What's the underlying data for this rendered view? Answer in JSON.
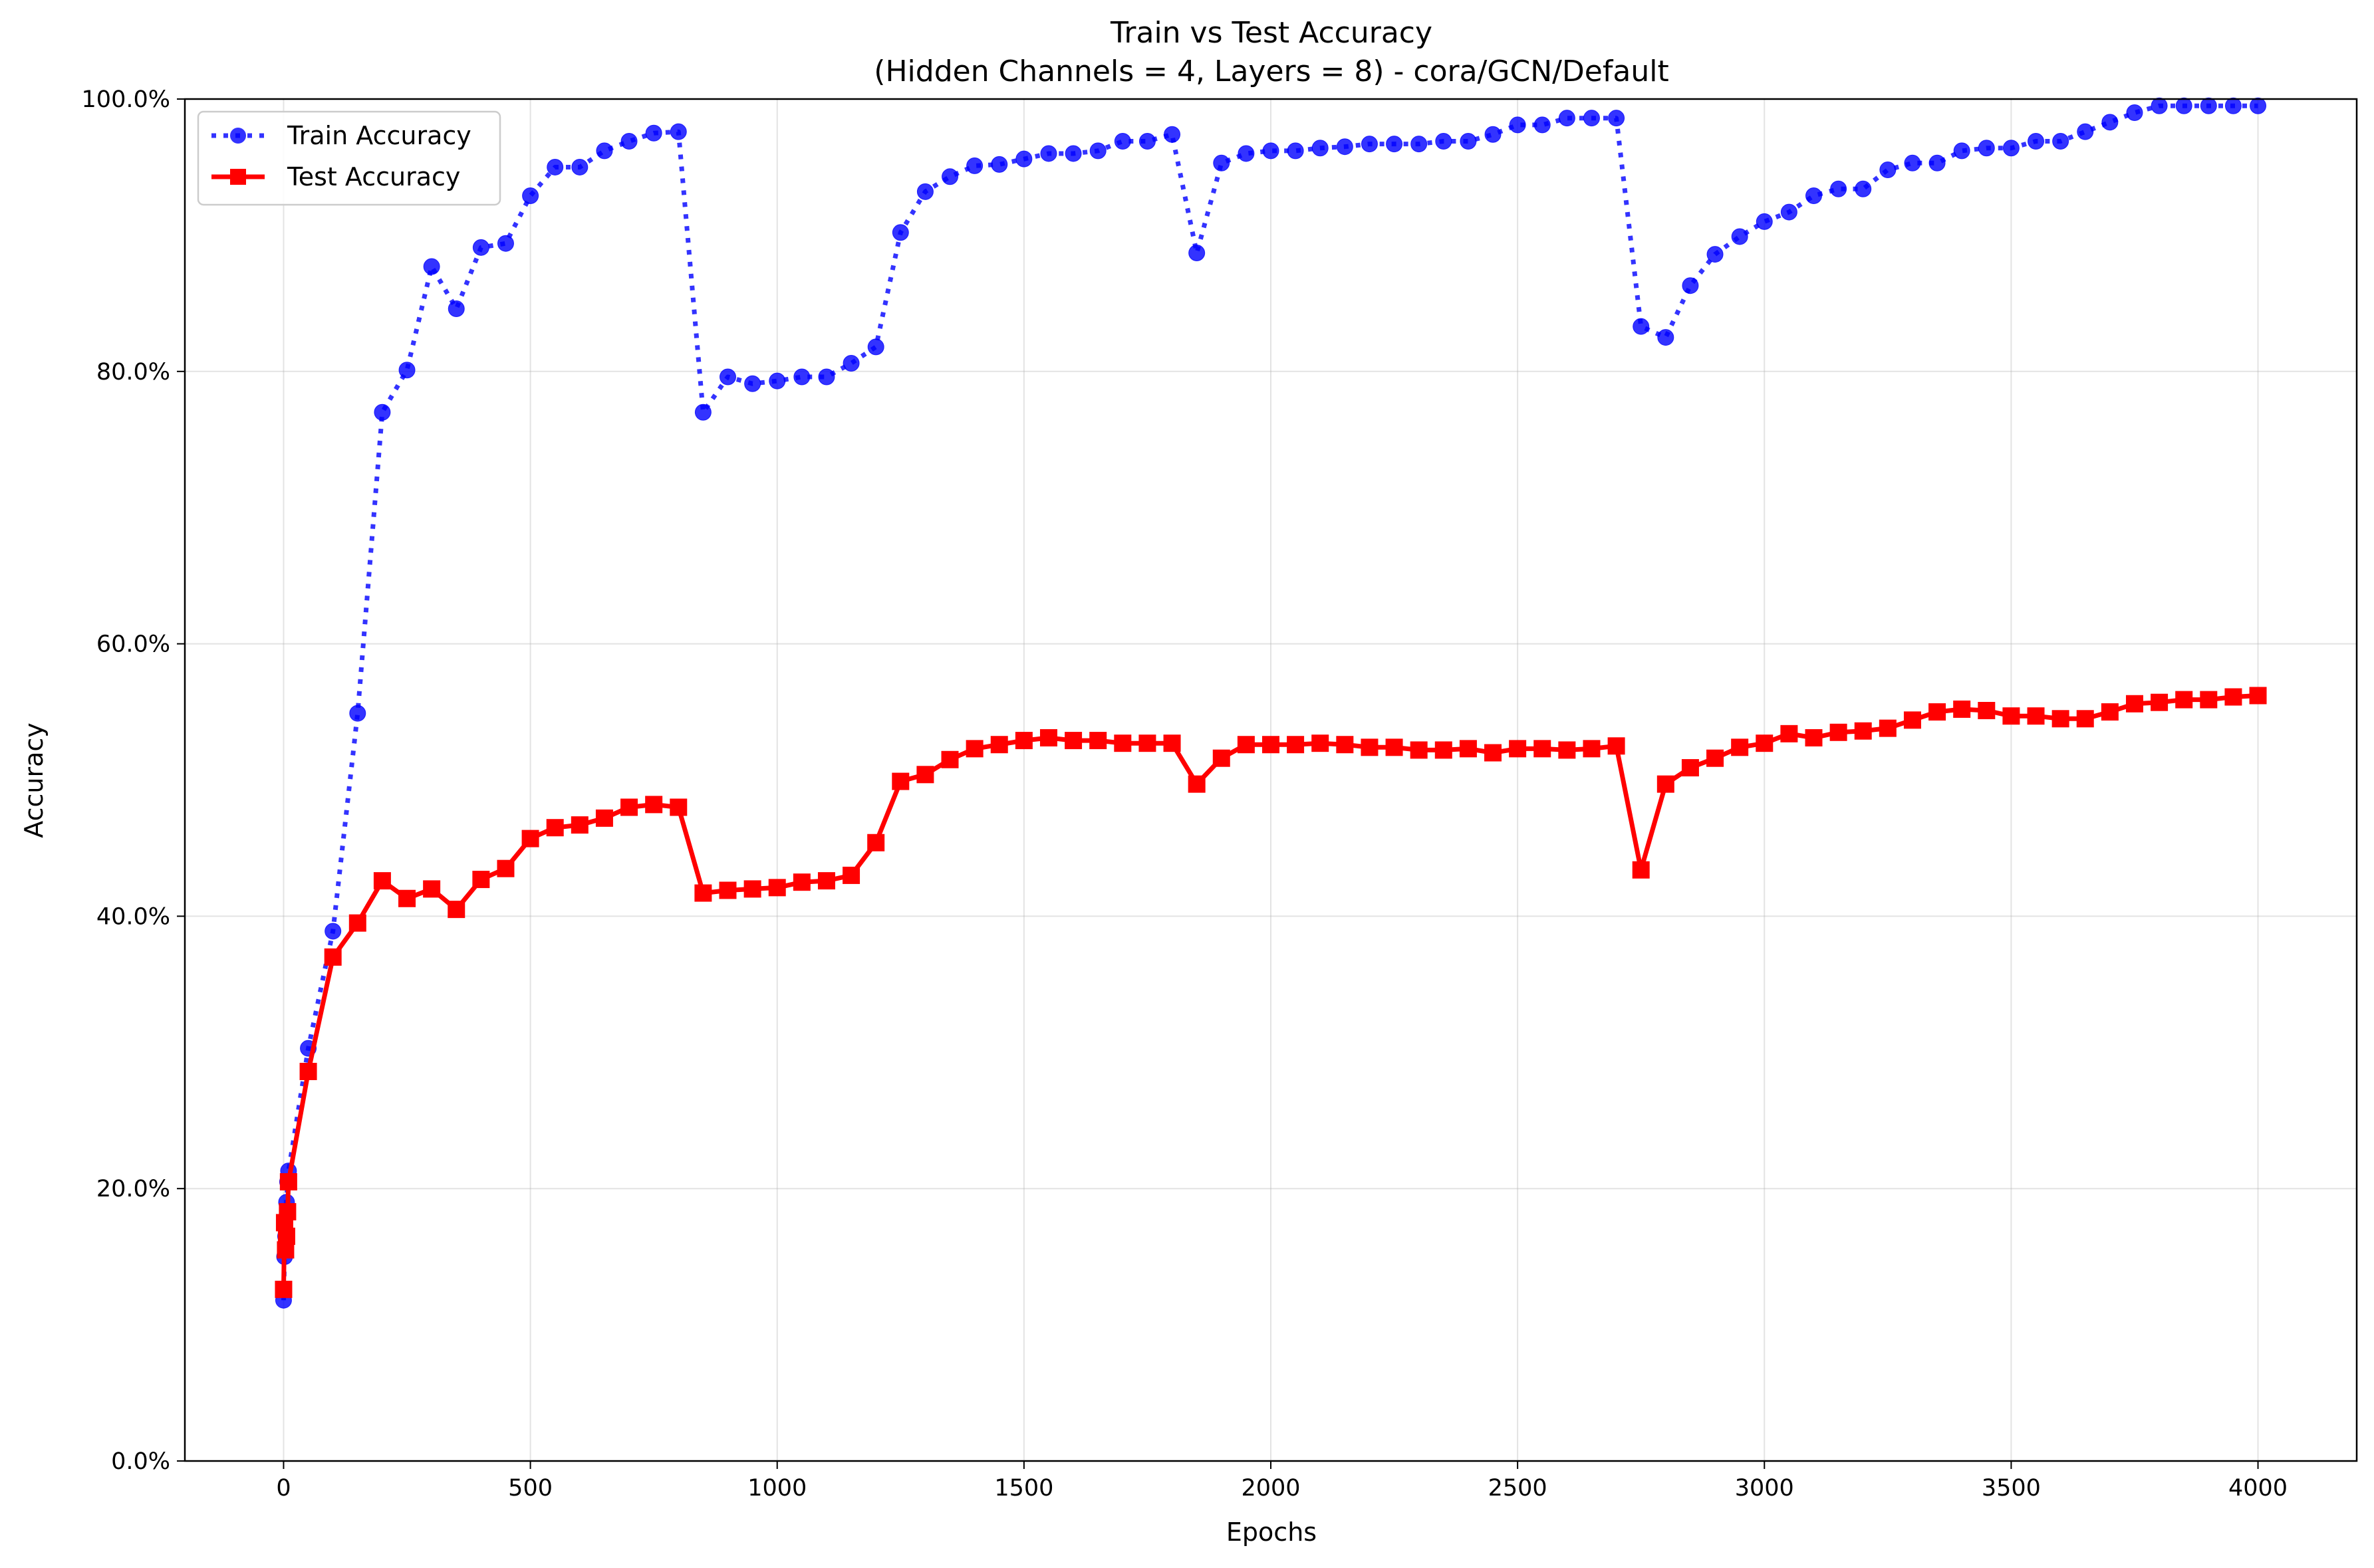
{
  "chart_data": {
    "type": "line",
    "title": "Train vs Test Accuracy",
    "subtitle": "(Hidden Channels = 4, Layers = 8) - cora/GCN/Default",
    "xlabel": "Epochs",
    "ylabel": "Accuracy",
    "xlim": [
      -200,
      4200
    ],
    "ylim": [
      0,
      100
    ],
    "x_ticks": [
      0,
      500,
      1000,
      1500,
      2000,
      2500,
      3000,
      3500,
      4000
    ],
    "x_tick_labels": [
      "0",
      "500",
      "1000",
      "1500",
      "2000",
      "2500",
      "3000",
      "3500",
      "4000"
    ],
    "y_ticks": [
      0,
      20,
      40,
      60,
      80,
      100
    ],
    "y_tick_labels": [
      "0.0%",
      "20.0%",
      "40.0%",
      "60.0%",
      "80.0%",
      "100.0%"
    ],
    "grid": true,
    "legend_position": "top-left",
    "x": [
      0,
      2,
      4,
      6,
      8,
      10,
      50,
      100,
      150,
      200,
      250,
      300,
      350,
      400,
      450,
      500,
      550,
      600,
      650,
      700,
      750,
      800,
      850,
      900,
      950,
      1000,
      1050,
      1100,
      1150,
      1200,
      1250,
      1300,
      1350,
      1400,
      1450,
      1500,
      1550,
      1600,
      1650,
      1700,
      1750,
      1800,
      1850,
      1900,
      1950,
      2000,
      2050,
      2100,
      2150,
      2200,
      2250,
      2300,
      2350,
      2400,
      2450,
      2500,
      2550,
      2600,
      2650,
      2700,
      2750,
      2800,
      2850,
      2900,
      2950,
      3000,
      3050,
      3100,
      3150,
      3200,
      3250,
      3300,
      3350,
      3400,
      3450,
      3500,
      3550,
      3600,
      3650,
      3700,
      3750,
      3800,
      3850,
      3900,
      3950,
      4000
    ],
    "series": [
      {
        "name": "Train Accuracy",
        "color": "#0000ff",
        "line_style": "dotted",
        "marker": "circle",
        "values": [
          11.8,
          15.0,
          16.5,
          19.0,
          20.5,
          21.3,
          30.3,
          38.9,
          54.9,
          77.0,
          80.1,
          87.7,
          84.6,
          89.1,
          89.4,
          92.9,
          95.0,
          95.0,
          96.2,
          96.9,
          97.5,
          97.6,
          77.0,
          79.6,
          79.1,
          79.3,
          79.6,
          79.6,
          80.6,
          81.8,
          90.2,
          93.2,
          94.3,
          95.1,
          95.2,
          95.6,
          96.0,
          96.0,
          96.2,
          96.9,
          96.9,
          97.4,
          88.7,
          95.3,
          96.0,
          96.2,
          96.2,
          96.4,
          96.5,
          96.7,
          96.7,
          96.7,
          96.9,
          96.9,
          97.4,
          98.1,
          98.1,
          98.6,
          98.6,
          98.6,
          83.3,
          82.5,
          86.3,
          88.6,
          89.9,
          91.0,
          91.7,
          92.9,
          93.4,
          93.4,
          94.8,
          95.3,
          95.3,
          96.2,
          96.4,
          96.4,
          96.9,
          96.9,
          97.6,
          98.3,
          99.0,
          99.5,
          99.5,
          99.5,
          99.5,
          99.5
        ]
      },
      {
        "name": "Test Accuracy",
        "color": "#ff0000",
        "line_style": "solid",
        "marker": "square",
        "values": [
          12.6,
          17.5,
          15.5,
          16.5,
          18.3,
          20.5,
          28.6,
          37.0,
          39.5,
          42.6,
          41.3,
          42.0,
          40.5,
          42.7,
          43.5,
          45.7,
          46.5,
          46.7,
          47.2,
          48.0,
          48.2,
          48.0,
          41.7,
          41.9,
          42.0,
          42.1,
          42.5,
          42.6,
          43.0,
          45.4,
          49.9,
          50.4,
          51.5,
          52.3,
          52.6,
          52.9,
          53.1,
          52.9,
          52.9,
          52.7,
          52.7,
          52.7,
          49.7,
          51.6,
          52.6,
          52.6,
          52.6,
          52.7,
          52.6,
          52.4,
          52.4,
          52.2,
          52.2,
          52.3,
          52.0,
          52.3,
          52.3,
          52.2,
          52.3,
          52.5,
          43.4,
          49.7,
          50.9,
          51.6,
          52.4,
          52.7,
          53.4,
          53.1,
          53.5,
          53.6,
          53.8,
          54.4,
          55.0,
          55.2,
          55.1,
          54.7,
          54.7,
          54.5,
          54.5,
          55.0,
          55.6,
          55.7,
          55.9,
          55.9,
          56.1,
          56.2
        ]
      }
    ]
  }
}
